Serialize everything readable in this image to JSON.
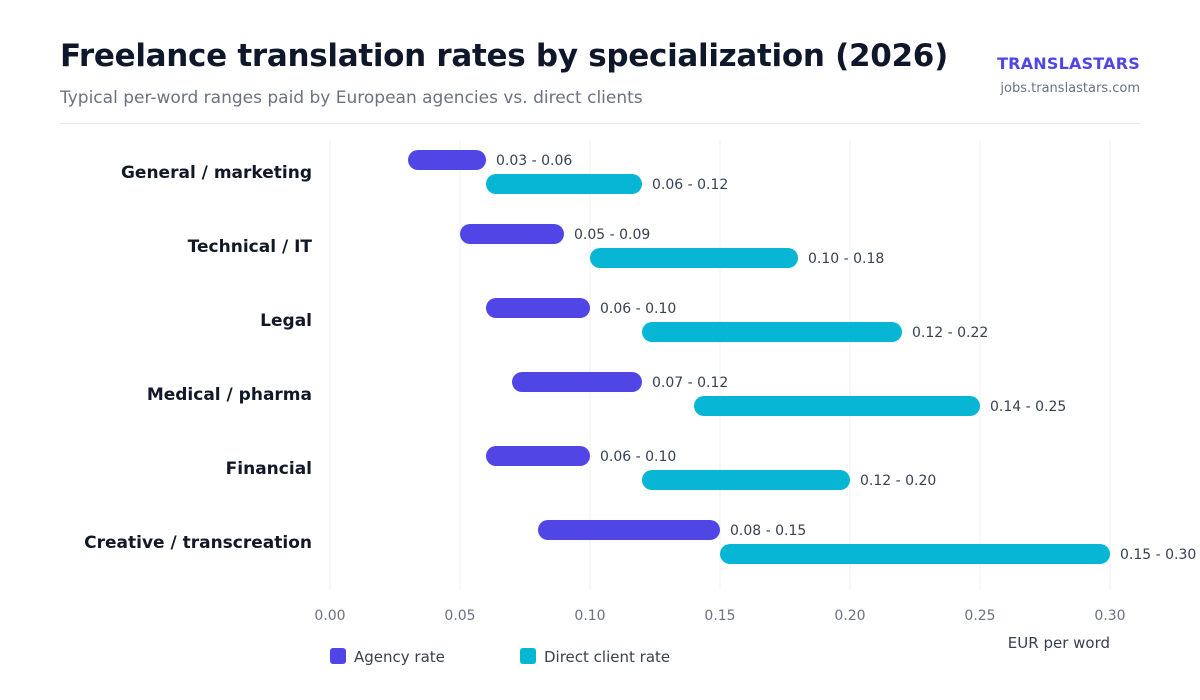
{
  "header": {
    "title": "Freelance translation rates by specialization (2026)",
    "subtitle": "Typical per-word ranges paid by European agencies vs. direct clients",
    "brand": "TRANSLASTARS",
    "url": "jobs.translastars.com"
  },
  "colors": {
    "agency": "#4f46e5",
    "direct": "#06b6d4",
    "grid": "#eef0f3"
  },
  "chart_data": {
    "type": "bar",
    "orientation": "horizontal-range",
    "categories": [
      "General / marketing",
      "Technical / IT",
      "Legal",
      "Medical / pharma",
      "Financial",
      "Creative / transcreation"
    ],
    "series": [
      {
        "name": "Agency rate",
        "color": "#4f46e5",
        "ranges": [
          [
            0.03,
            0.06
          ],
          [
            0.05,
            0.09
          ],
          [
            0.06,
            0.1
          ],
          [
            0.07,
            0.12
          ],
          [
            0.06,
            0.1
          ],
          [
            0.08,
            0.15
          ]
        ],
        "labels": [
          "0.03 - 0.06",
          "0.05 - 0.09",
          "0.06 - 0.10",
          "0.07 - 0.12",
          "0.06 - 0.10",
          "0.08 - 0.15"
        ]
      },
      {
        "name": "Direct client rate",
        "color": "#06b6d4",
        "ranges": [
          [
            0.06,
            0.12
          ],
          [
            0.1,
            0.18
          ],
          [
            0.12,
            0.22
          ],
          [
            0.14,
            0.25
          ],
          [
            0.12,
            0.2
          ],
          [
            0.15,
            0.3
          ]
        ],
        "labels": [
          "0.06 - 0.12",
          "0.10 - 0.18",
          "0.12 - 0.22",
          "0.14 - 0.25",
          "0.12 - 0.20",
          "0.15 - 0.30"
        ]
      }
    ],
    "xlim": [
      0,
      0.3
    ],
    "xticks": [
      0,
      0.05,
      0.1,
      0.15,
      0.2,
      0.25,
      0.3
    ],
    "xtick_labels": [
      "0.00",
      "0.05",
      "0.10",
      "0.15",
      "0.20",
      "0.25",
      "0.30"
    ],
    "xlabel": "EUR per word",
    "grid": "vertical",
    "legend_position": "bottom-left"
  }
}
